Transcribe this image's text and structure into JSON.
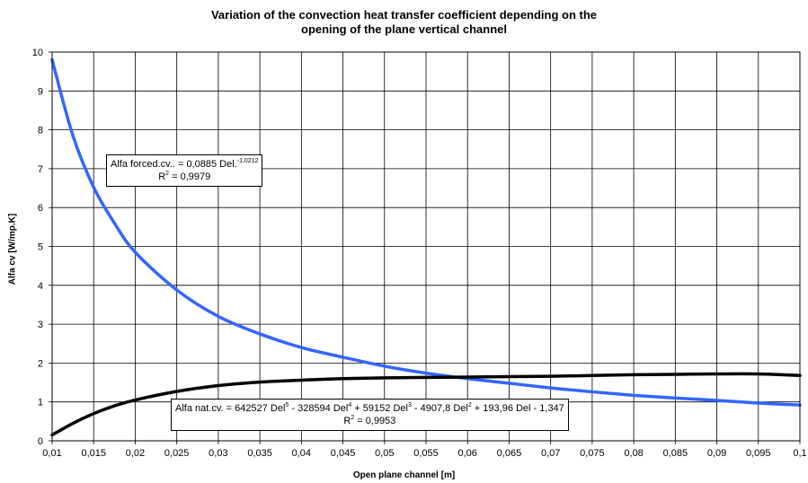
{
  "chart_data": {
    "type": "line",
    "title_line1": "Variation of the convection heat transfer coefficient depending on the",
    "title_line2": "opening of the plane vertical channel",
    "xlabel": "Open plane channel [m]",
    "ylabel": "Alfa cv [W/mp.K]",
    "xlim": [
      0.01,
      0.1
    ],
    "ylim": [
      0,
      10
    ],
    "grid": true,
    "x_ticks": [
      "0,01",
      "0,015",
      "0,02",
      "0,025",
      "0,03",
      "0,035",
      "0,04",
      "0,045",
      "0,05",
      "0,055",
      "0,06",
      "0,065",
      "0,07",
      "0,075",
      "0,08",
      "0,085",
      "0,09",
      "0,095",
      "0,1"
    ],
    "y_ticks": [
      "0",
      "1",
      "2",
      "3",
      "4",
      "5",
      "6",
      "7",
      "8",
      "9",
      "10"
    ],
    "series": [
      {
        "color": "#3366ff",
        "x": [
          0.01,
          0.0125,
          0.015,
          0.0175,
          0.02,
          0.025,
          0.03,
          0.035,
          0.04,
          0.045,
          0.05,
          0.055,
          0.06,
          0.065,
          0.07,
          0.075,
          0.08,
          0.085,
          0.09,
          0.095,
          0.1
        ],
        "y": [
          9.8,
          7.85,
          6.52,
          5.6,
          4.85,
          3.88,
          3.2,
          2.75,
          2.4,
          2.15,
          1.92,
          1.74,
          1.6,
          1.48,
          1.36,
          1.26,
          1.17,
          1.1,
          1.04,
          0.97,
          0.92
        ]
      },
      {
        "color": "#000000",
        "x": [
          0.01,
          0.0125,
          0.015,
          0.0175,
          0.02,
          0.025,
          0.03,
          0.035,
          0.04,
          0.045,
          0.05,
          0.055,
          0.06,
          0.065,
          0.07,
          0.075,
          0.08,
          0.085,
          0.09,
          0.095,
          0.1
        ],
        "y": [
          0.15,
          0.45,
          0.7,
          0.9,
          1.05,
          1.27,
          1.42,
          1.51,
          1.56,
          1.6,
          1.62,
          1.63,
          1.64,
          1.65,
          1.66,
          1.68,
          1.7,
          1.71,
          1.72,
          1.72,
          1.68
        ]
      }
    ],
    "annotations": {
      "forced_prefix": "Alfa  forced.cv.. = 0,0885 Del.",
      "forced_exp": "-1,0212",
      "forced_r2_prefix": "R",
      "forced_r2_exp": "2",
      "forced_r2_value": " = 0,9979",
      "nat_p1": "Alfa nat.cv. = 642527 Del",
      "nat_e1": "5",
      "nat_p2": " - 328594 Del",
      "nat_e2": "4",
      "nat_p3": " + 59152 Del",
      "nat_e3": "3",
      "nat_p4": " - 4907,8 Del",
      "nat_e4": "2",
      "nat_p5": " + 193,96 Del - 1,347",
      "nat_r2_prefix": "R",
      "nat_r2_exp": "2",
      "nat_r2_value": " = 0,9953"
    }
  }
}
